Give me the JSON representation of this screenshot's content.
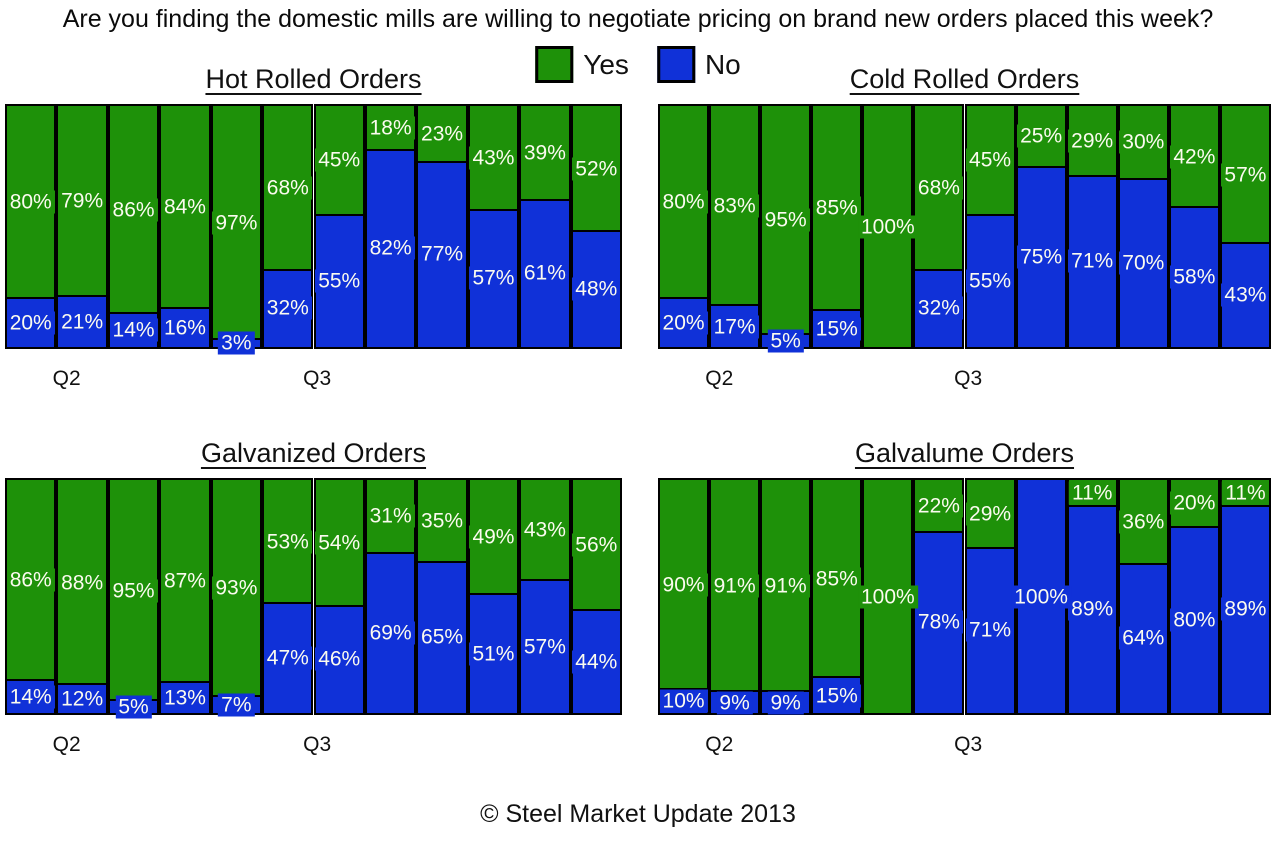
{
  "title": "Are you finding the domestic mills are willing to negotiate pricing on brand new orders placed this week?",
  "legend": {
    "yes_label": "Yes",
    "no_label": "No",
    "position": "top-center"
  },
  "colors": {
    "yes": "#1E9109",
    "no": "#1031D8",
    "label_text": "#FBFBEF",
    "border": "#000000"
  },
  "axis": {
    "q2": "Q2",
    "q3": "Q3"
  },
  "footer": "© Steel Market Update 2013",
  "chart_data": [
    {
      "type": "bar",
      "subtype": "stacked-100-percent",
      "title": "Hot Rolled Orders",
      "x_tick_labels_shown": [
        "Q2",
        "Q3"
      ],
      "categories_note": "12 weekly surveys spanning Q2 and Q3",
      "series": [
        {
          "name": "Yes",
          "values": [
            80,
            79,
            86,
            84,
            97,
            68,
            45,
            18,
            23,
            43,
            39,
            52
          ]
        },
        {
          "name": "No",
          "values": [
            20,
            21,
            14,
            16,
            3,
            32,
            55,
            82,
            77,
            57,
            61,
            48
          ]
        }
      ],
      "ylim": [
        0,
        100
      ],
      "grid": false,
      "data_labels": "percent-inside-white"
    },
    {
      "type": "bar",
      "subtype": "stacked-100-percent",
      "title": "Cold Rolled Orders",
      "x_tick_labels_shown": [
        "Q2",
        "Q3"
      ],
      "categories_note": "12 weekly surveys spanning Q2 and Q3",
      "series": [
        {
          "name": "Yes",
          "values": [
            80,
            83,
            95,
            85,
            100,
            68,
            45,
            25,
            29,
            30,
            42,
            57
          ]
        },
        {
          "name": "No",
          "values": [
            20,
            17,
            5,
            15,
            0,
            32,
            55,
            75,
            71,
            70,
            58,
            43
          ]
        }
      ],
      "ylim": [
        0,
        100
      ],
      "grid": false,
      "data_labels": "percent-inside-white"
    },
    {
      "type": "bar",
      "subtype": "stacked-100-percent",
      "title": "Galvanized Orders",
      "x_tick_labels_shown": [
        "Q2",
        "Q3"
      ],
      "categories_note": "12 weekly surveys spanning Q2 and Q3",
      "series": [
        {
          "name": "Yes",
          "values": [
            86,
            88,
            95,
            87,
            93,
            53,
            54,
            31,
            35,
            49,
            43,
            56
          ]
        },
        {
          "name": "No",
          "values": [
            14,
            12,
            5,
            13,
            7,
            47,
            46,
            69,
            65,
            51,
            57,
            44
          ]
        }
      ],
      "ylim": [
        0,
        100
      ],
      "grid": false,
      "data_labels": "percent-inside-white"
    },
    {
      "type": "bar",
      "subtype": "stacked-100-percent",
      "title": "Galvalume Orders",
      "x_tick_labels_shown": [
        "Q2",
        "Q3"
      ],
      "categories_note": "12 weekly surveys spanning Q2 and Q3",
      "series": [
        {
          "name": "Yes",
          "values": [
            90,
            91,
            91,
            85,
            100,
            22,
            29,
            0,
            11,
            36,
            20,
            11
          ]
        },
        {
          "name": "No",
          "values": [
            10,
            9,
            9,
            15,
            0,
            78,
            71,
            100,
            89,
            64,
            80,
            89
          ]
        }
      ],
      "ylim": [
        0,
        100
      ],
      "grid": false,
      "data_labels": "percent-inside-white"
    }
  ]
}
